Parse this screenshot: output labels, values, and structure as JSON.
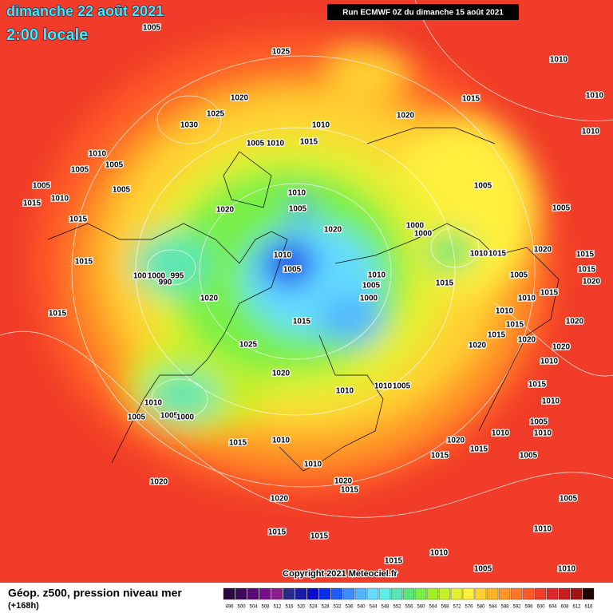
{
  "header": {
    "title_date": "dimanche 22 août 2021",
    "title_time": "2:00 locale",
    "run": "Run ECMWF 0Z du dimanche 15 août 2021"
  },
  "footer": {
    "field": "Géop. z500, pression niveau mer",
    "lead": "(+168h)",
    "copyright": "Copyright 2021 Meteociel.fr"
  },
  "legend": {
    "ticks": [
      496,
      500,
      504,
      508,
      512,
      516,
      520,
      524,
      528,
      532,
      536,
      540,
      544,
      548,
      552,
      556,
      560,
      564,
      568,
      572,
      576,
      580,
      584,
      588,
      592,
      596,
      600,
      604,
      608,
      612,
      616
    ],
    "colors": [
      "#2b0a3d",
      "#3d0a55",
      "#5a0a73",
      "#76108a",
      "#8a1e8a",
      "#2b2a8a",
      "#1a1aa8",
      "#0a0ac8",
      "#0a2ee6",
      "#1e5aff",
      "#3c8cff",
      "#50b4ff",
      "#64dcff",
      "#5af0e6",
      "#5ae6b4",
      "#5ae678",
      "#78f046",
      "#a0f028",
      "#c8f028",
      "#e6f032",
      "#fff03c",
      "#ffd232",
      "#ffb428",
      "#ff9628",
      "#ff7828",
      "#ff5a28",
      "#f03c28",
      "#dc2828",
      "#c81e1e",
      "#a01414",
      "#200404"
    ]
  },
  "isobars": {
    "labels": [
      "1025",
      "1010",
      "1010",
      "1005",
      "1020",
      "1025",
      "1030",
      "1010",
      "1015",
      "1020",
      "1010",
      "1005",
      "1010",
      "1015",
      "1010",
      "1005",
      "1005",
      "1005",
      "1010",
      "1005",
      "1015",
      "1015",
      "1010",
      "1005",
      "1020",
      "1005",
      "1005",
      "1000",
      "1000",
      "1020",
      "1015",
      "1010",
      "1005",
      "1010",
      "1015",
      "1020",
      "1015",
      "1015",
      "1005",
      "1000",
      "995",
      "990",
      "1010",
      "1005",
      "1000",
      "1015",
      "1005",
      "1020",
      "1020",
      "1010",
      "1015",
      "1015",
      "1015",
      "1010",
      "1015",
      "1020",
      "1025",
      "1015",
      "1020",
      "1020",
      "1020",
      "1010",
      "1020",
      "1010",
      "1010",
      "1005",
      "1015",
      "1010",
      "1005",
      "1005",
      "1000",
      "1010",
      "1005",
      "1010",
      "1010",
      "1015",
      "1010",
      "1020",
      "1015",
      "1015",
      "1005",
      "1010",
      "1020",
      "1020",
      "1015",
      "1005",
      "1020",
      "1010",
      "1015",
      "1015",
      "1010",
      "1015",
      "1005",
      "1010"
    ]
  }
}
